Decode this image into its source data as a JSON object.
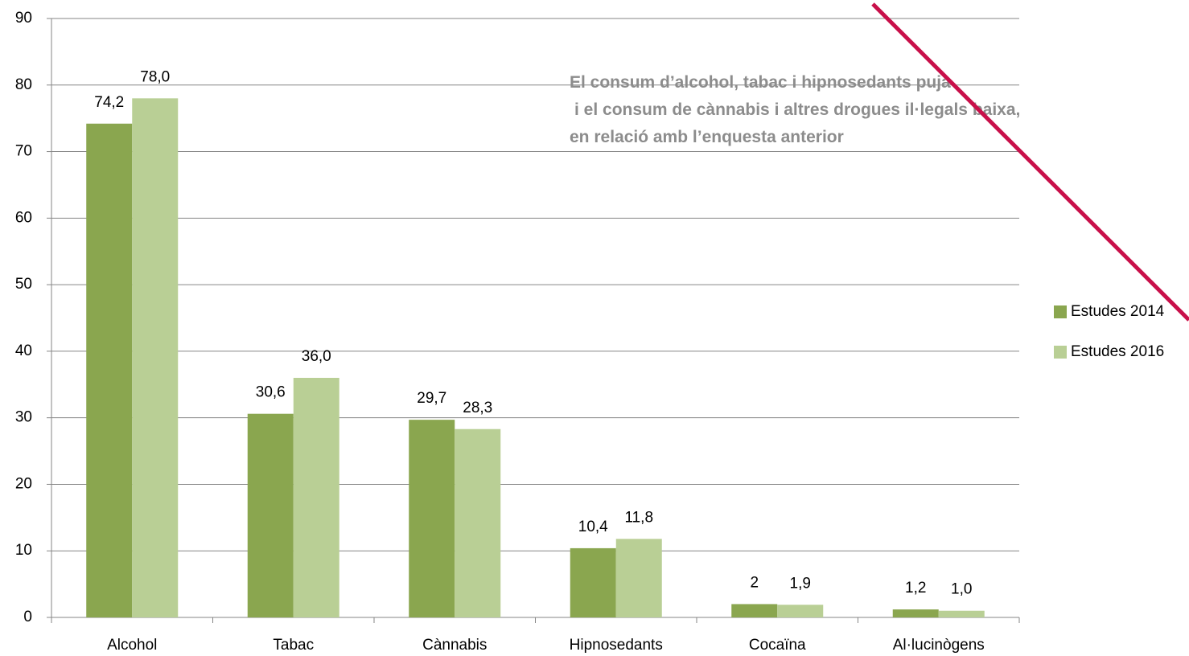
{
  "chart_data": {
    "type": "bar",
    "categories": [
      "Alcohol",
      "Tabac",
      "Cànnabis",
      "Hipnosedants",
      "Cocaïna",
      "Al·lucinògens"
    ],
    "series": [
      {
        "name": "Estudes 2014",
        "color": "#8aa64f",
        "values": [
          74.2,
          30.6,
          29.7,
          10.4,
          2,
          1.2
        ],
        "value_labels": [
          "74,2",
          "30,6",
          "29,7",
          "10,4",
          "2",
          "1,2"
        ]
      },
      {
        "name": "Estudes 2016",
        "color": "#b9cf95",
        "values": [
          78.0,
          36.0,
          28.3,
          11.8,
          1.9,
          1.0
        ],
        "value_labels": [
          "78,0",
          "36,0",
          "28,3",
          "11,8",
          "1,9",
          "1,0"
        ]
      }
    ],
    "ylim": [
      0,
      90
    ],
    "yticks": [
      0,
      10,
      20,
      30,
      40,
      50,
      60,
      70,
      80,
      90
    ],
    "grid": true,
    "legend": "right",
    "annotations": [
      "El consum d’alcohol, tabac i hipnosedants puja",
      "i el consum de cànnabis i altres drogues il·legals baixa,",
      "en relació amb l’enquesta anterior"
    ]
  }
}
